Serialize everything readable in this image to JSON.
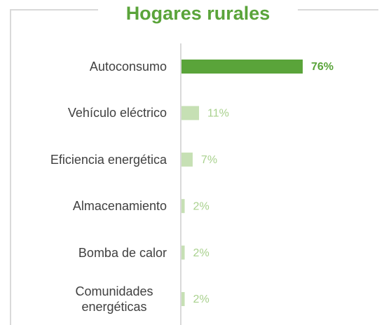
{
  "chart_data": {
    "type": "bar",
    "orientation": "horizontal",
    "title": "Hogares rurales",
    "categories": [
      "Autoconsumo",
      "Vehículo eléctrico",
      "Eficiencia energética",
      "Almacenamiento",
      "Bomba de calor",
      "Comunidades energéticas"
    ],
    "values": [
      76,
      11,
      7,
      2,
      2,
      2
    ],
    "value_labels": [
      "76%",
      "11%",
      "7%",
      "2%",
      "2%",
      "2%"
    ],
    "colors": [
      "#5aa43a",
      "#c6e0b4",
      "#c6e0b4",
      "#c6e0b4",
      "#c6e0b4",
      "#c6e0b4"
    ],
    "value_label_colors": [
      "#5aa43a",
      "#a9d18e",
      "#a9d18e",
      "#a9d18e",
      "#a9d18e",
      "#a9d18e"
    ]
  }
}
